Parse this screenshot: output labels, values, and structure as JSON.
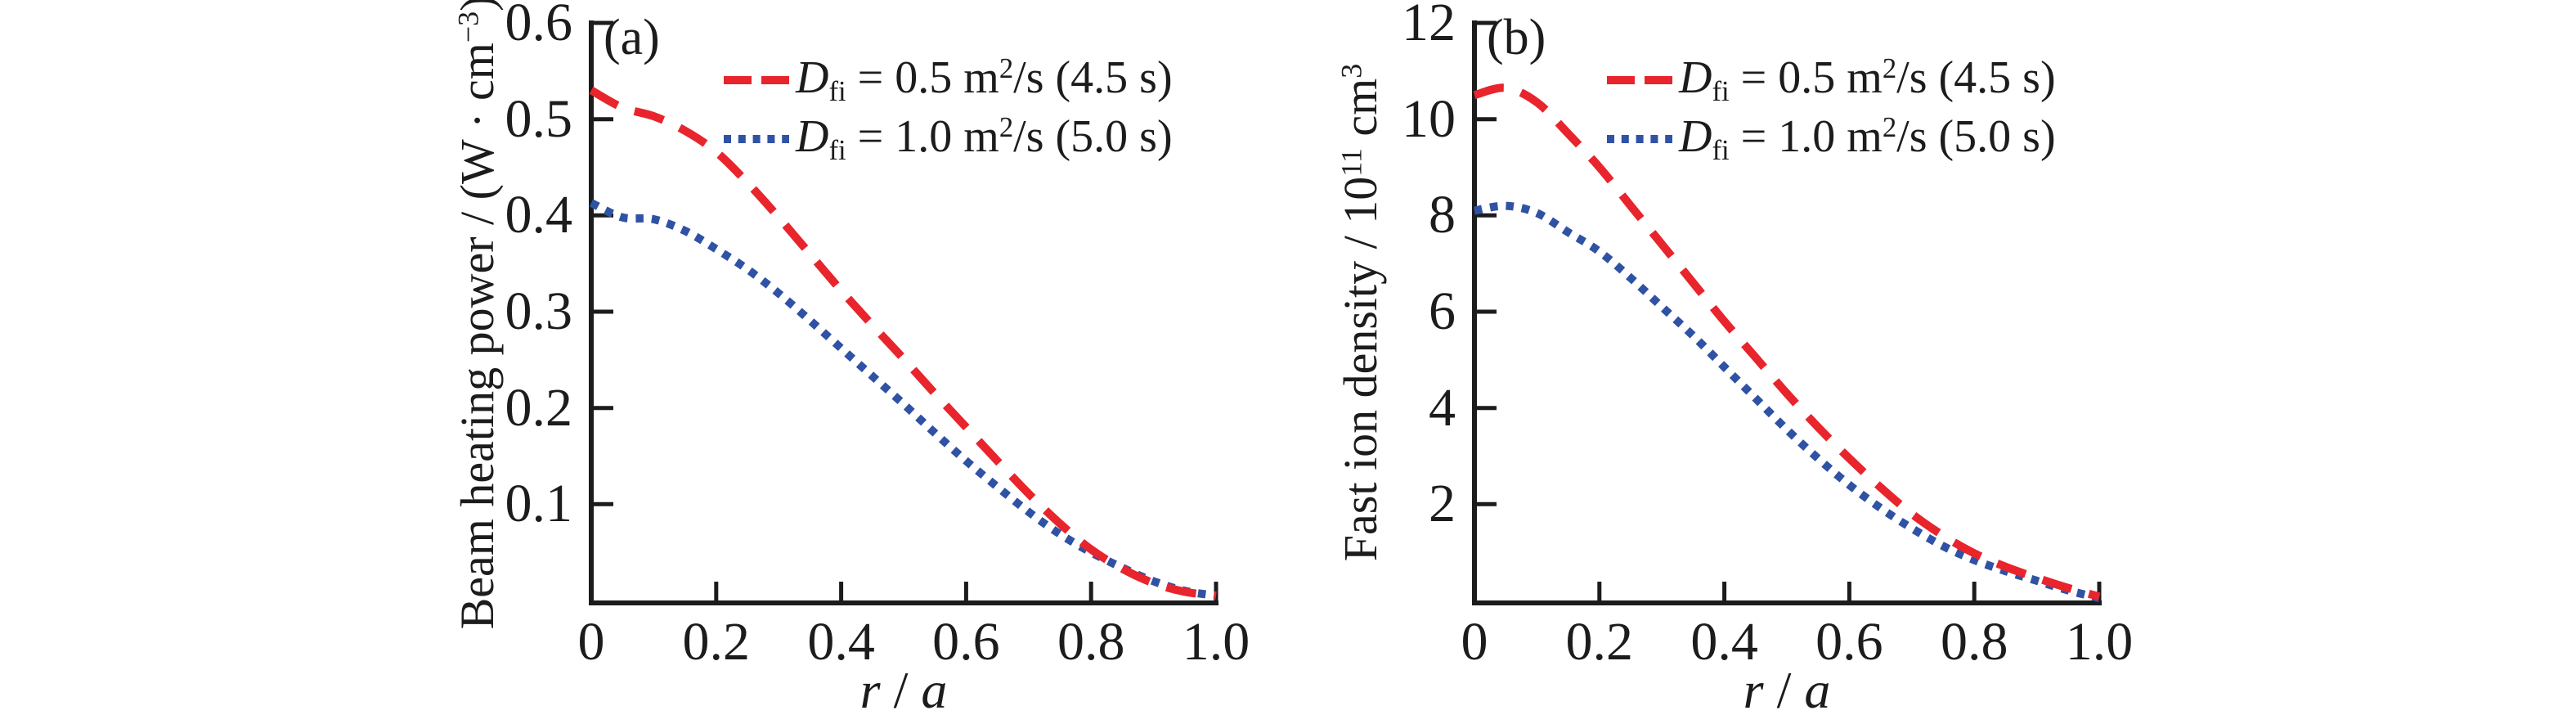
{
  "page": {
    "background": "#ffffff",
    "axis_color": "#1c1c1c",
    "text_color": "#1c1c1c"
  },
  "chart_data": [
    {
      "type": "line",
      "panel_label": "(a)",
      "title": "",
      "xlabel": "r / a",
      "ylabel": "Beam heating power / (W · cm⁻³)",
      "xlabel_segments": [
        {
          "text": "r",
          "style": "italic"
        },
        {
          "text": " / ",
          "style": "normal"
        },
        {
          "text": "a",
          "style": "italic"
        }
      ],
      "ylabel_segments": [
        {
          "text": "Beam heating power / (W · cm",
          "style": "normal"
        },
        {
          "text": "−3",
          "style": "sup"
        },
        {
          "text": ")",
          "style": "normal"
        }
      ],
      "xlim": [
        0,
        1.0
      ],
      "ylim": [
        0,
        0.6
      ],
      "x_tick_values": [
        0,
        0.2,
        0.4,
        0.6,
        0.8,
        1.0
      ],
      "x_tick_labels": [
        "0",
        "0.2",
        "0.4",
        "0.6",
        "0.8",
        "1.0"
      ],
      "y_tick_values": [
        0.1,
        0.2,
        0.3,
        0.4,
        0.5,
        0.6
      ],
      "y_tick_labels": [
        "0.1",
        "0.2",
        "0.3",
        "0.4",
        "0.5",
        "0.6"
      ],
      "grid": false,
      "legend_position": "top-inside",
      "x": [
        0,
        0.05,
        0.1,
        0.15,
        0.2,
        0.25,
        0.3,
        0.35,
        0.4,
        0.45,
        0.5,
        0.55,
        0.6,
        0.65,
        0.7,
        0.75,
        0.8,
        0.85,
        0.9,
        0.95,
        1.0
      ],
      "series": [
        {
          "name": "D_fi = 0.5 m²/s (4.5 s)",
          "color": "#e8242c",
          "line_style": "dashed",
          "label_segments": [
            {
              "text": "D",
              "style": "italic"
            },
            {
              "text": "fi",
              "style": "sub"
            },
            {
              "text": " = 0.5 m",
              "style": "normal"
            },
            {
              "text": "2",
              "style": "sup"
            },
            {
              "text": "/s (4.5 s)",
              "style": "normal"
            }
          ],
          "values": [
            0.53,
            0.512,
            0.503,
            0.488,
            0.466,
            0.434,
            0.398,
            0.36,
            0.322,
            0.286,
            0.251,
            0.215,
            0.18,
            0.145,
            0.111,
            0.08,
            0.053,
            0.033,
            0.018,
            0.009,
            0.005
          ]
        },
        {
          "name": "D_fi = 1.0 m²/s (5.0 s)",
          "color": "#3052a4",
          "line_style": "dotted",
          "label_segments": [
            {
              "text": "D",
              "style": "italic"
            },
            {
              "text": "fi",
              "style": "sub"
            },
            {
              "text": " = 1.0 m",
              "style": "normal"
            },
            {
              "text": "2",
              "style": "sup"
            },
            {
              "text": "/s (5.0 s)",
              "style": "normal"
            }
          ],
          "values": [
            0.413,
            0.398,
            0.396,
            0.384,
            0.365,
            0.344,
            0.319,
            0.291,
            0.262,
            0.233,
            0.204,
            0.174,
            0.145,
            0.118,
            0.092,
            0.069,
            0.05,
            0.034,
            0.02,
            0.01,
            0.005
          ]
        }
      ]
    },
    {
      "type": "line",
      "panel_label": "(b)",
      "title": "",
      "xlabel": "r / a",
      "ylabel": "Fast ion density / 10¹¹ cm³",
      "xlabel_segments": [
        {
          "text": "r",
          "style": "italic"
        },
        {
          "text": " / ",
          "style": "normal"
        },
        {
          "text": "a",
          "style": "italic"
        }
      ],
      "ylabel_segments": [
        {
          "text": "Fast ion density / 10",
          "style": "normal"
        },
        {
          "text": "11",
          "style": "sup"
        },
        {
          "text": " cm",
          "style": "normal"
        },
        {
          "text": "3",
          "style": "sup"
        }
      ],
      "xlim": [
        0,
        1.0
      ],
      "ylim": [
        0,
        12
      ],
      "x_tick_values": [
        0,
        0.2,
        0.4,
        0.6,
        0.8,
        1.0
      ],
      "x_tick_labels": [
        "0",
        "0.2",
        "0.4",
        "0.6",
        "0.8",
        "1.0"
      ],
      "y_tick_values": [
        2,
        4,
        6,
        8,
        10,
        12
      ],
      "y_tick_labels": [
        "2",
        "4",
        "6",
        "8",
        "10",
        "12"
      ],
      "grid": false,
      "legend_position": "top-inside",
      "x": [
        0,
        0.05,
        0.1,
        0.15,
        0.2,
        0.25,
        0.3,
        0.35,
        0.4,
        0.45,
        0.5,
        0.55,
        0.6,
        0.65,
        0.7,
        0.75,
        0.8,
        0.85,
        0.9,
        0.95,
        1.0
      ],
      "series": [
        {
          "name": "D_fi = 0.5 m²/s (4.5 s)",
          "color": "#e8242c",
          "line_style": "dashed",
          "label_segments": [
            {
              "text": "D",
              "style": "italic"
            },
            {
              "text": "fi",
              "style": "sub"
            },
            {
              "text": " = 0.5 m",
              "style": "normal"
            },
            {
              "text": "2",
              "style": "sup"
            },
            {
              "text": "/s (4.5 s)",
              "style": "normal"
            }
          ],
          "values": [
            10.5,
            10.65,
            10.35,
            9.7,
            9.0,
            8.2,
            7.4,
            6.6,
            5.8,
            5.05,
            4.3,
            3.6,
            2.95,
            2.35,
            1.8,
            1.35,
            0.98,
            0.7,
            0.47,
            0.26,
            0.08
          ]
        },
        {
          "name": "D_fi = 1.0 m²/s (5.0 s)",
          "color": "#3052a4",
          "line_style": "dotted",
          "label_segments": [
            {
              "text": "D",
              "style": "italic"
            },
            {
              "text": "fi",
              "style": "sub"
            },
            {
              "text": " = 1.0 m",
              "style": "normal"
            },
            {
              "text": "2",
              "style": "sup"
            },
            {
              "text": "/s (5.0 s)",
              "style": "normal"
            }
          ],
          "values": [
            8.1,
            8.2,
            8.05,
            7.65,
            7.25,
            6.7,
            6.1,
            5.5,
            4.85,
            4.2,
            3.55,
            2.95,
            2.4,
            1.92,
            1.5,
            1.13,
            0.84,
            0.61,
            0.41,
            0.21,
            0.05
          ]
        }
      ]
    }
  ]
}
